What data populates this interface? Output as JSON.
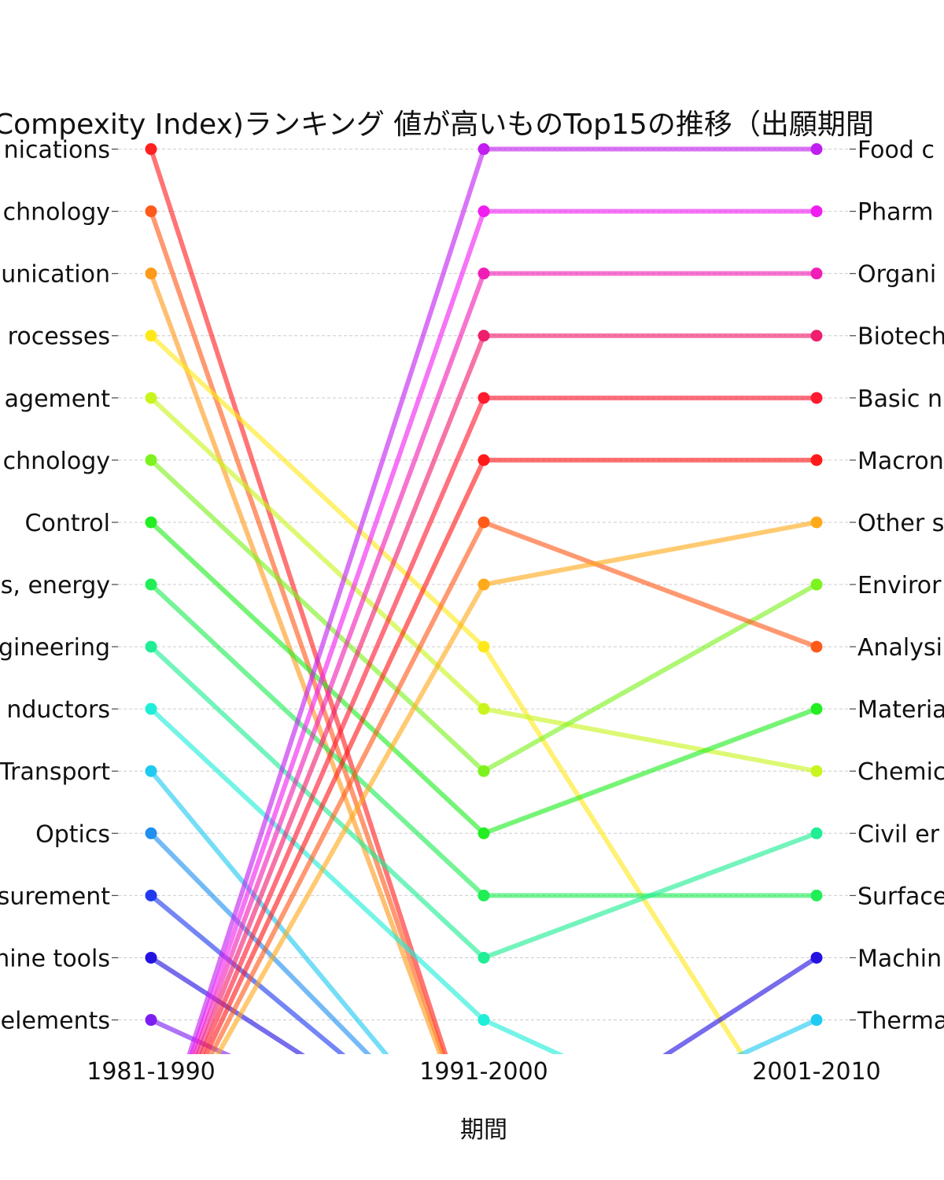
{
  "chart_data": {
    "type": "line",
    "title": "Compexity Index)ランキング 値が高いものTop15の推移（出願期間",
    "xlabel": "期間",
    "ylabel": "",
    "x": [
      "1981-1990",
      "1991-2000",
      "2001-2010"
    ],
    "ylim": [
      15.55,
      0.5
    ],
    "grid": true,
    "left_labels": [
      "nications",
      "chnology",
      "unication",
      "rocesses",
      "agement",
      "chnology",
      "Control",
      "s, energy",
      "gineering",
      "nductors",
      "Transport",
      "Optics",
      "surement",
      "hine tools",
      "elements"
    ],
    "right_labels": [
      "Food c",
      "Pharm",
      "Organi",
      "Biotech",
      "Basic n",
      "Macron",
      "Other s",
      "Enviror",
      "Analysi",
      "Materia",
      "Chemic",
      "Civil er",
      "Surface",
      "Machin",
      "Therma"
    ],
    "series": [
      {
        "ranks": [
          1,
          null,
          null
        ],
        "color": "#ff2020"
      },
      {
        "ranks": [
          2,
          null,
          null
        ],
        "color": "#ff5a1a"
      },
      {
        "ranks": [
          3,
          null,
          null
        ],
        "color": "#ff9a1a"
      },
      {
        "ranks": [
          4,
          9,
          null
        ],
        "color": "#ffe81a"
      },
      {
        "ranks": [
          5,
          10,
          11
        ],
        "color": "#c8f51e"
      },
      {
        "ranks": [
          6,
          11,
          8
        ],
        "color": "#7cf21e"
      },
      {
        "ranks": [
          7,
          12,
          10
        ],
        "color": "#22ee22"
      },
      {
        "ranks": [
          8,
          13,
          13
        ],
        "color": "#1fee55"
      },
      {
        "ranks": [
          9,
          14,
          12
        ],
        "color": "#1fee95"
      },
      {
        "ranks": [
          10,
          15,
          null
        ],
        "color": "#1feed8"
      },
      {
        "ranks": [
          11,
          null,
          15
        ],
        "color": "#1fcaf0"
      },
      {
        "ranks": [
          12,
          null,
          null
        ],
        "color": "#1f8ff0"
      },
      {
        "ranks": [
          13,
          null,
          null
        ],
        "color": "#1f3af0"
      },
      {
        "ranks": [
          14,
          null,
          14
        ],
        "color": "#2412e0"
      },
      {
        "ranks": [
          15,
          null,
          null
        ],
        "color": "#7c1ef0"
      },
      {
        "ranks": [
          null,
          1,
          1
        ],
        "color": "#c11ef0"
      },
      {
        "ranks": [
          null,
          2,
          2
        ],
        "color": "#f01ef0"
      },
      {
        "ranks": [
          null,
          3,
          3
        ],
        "color": "#f01eb4"
      },
      {
        "ranks": [
          null,
          4,
          4
        ],
        "color": "#f01e6e"
      },
      {
        "ranks": [
          null,
          5,
          5
        ],
        "color": "#ff1a30"
      },
      {
        "ranks": [
          null,
          6,
          6
        ],
        "color": "#ff1a1a"
      },
      {
        "ranks": [
          null,
          7,
          9
        ],
        "color": "#ff5a1a"
      },
      {
        "ranks": [
          null,
          8,
          7
        ],
        "color": "#ffaa1a"
      }
    ]
  }
}
